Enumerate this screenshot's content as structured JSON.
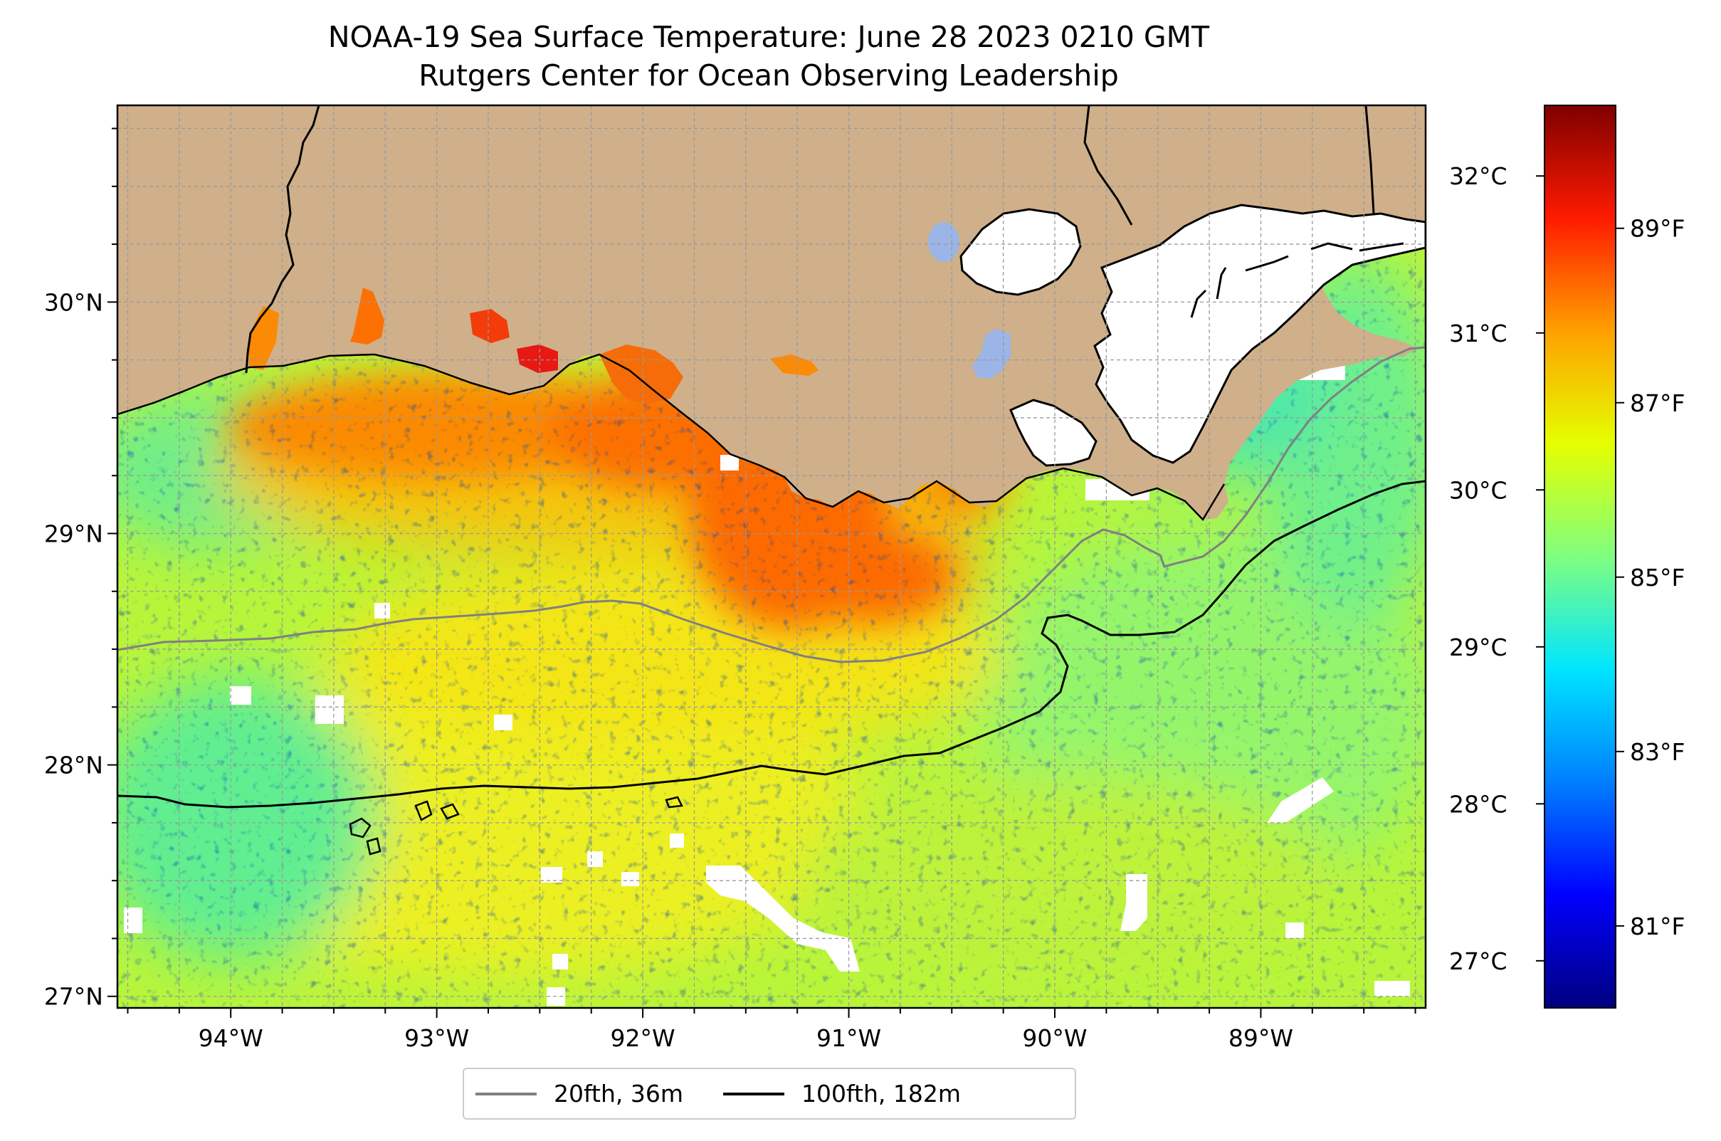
{
  "title": "NOAA-19 Sea Surface Temperature: June 28 2023 0210 GMT",
  "subtitle": "Rutgers Center for Ocean Observing Leadership",
  "colors": {
    "land": "#cfb08a",
    "cloud_mask": "#ffffff",
    "lake": "#9bb5e6",
    "isobath_20": "#808080",
    "isobath_100": "#000000",
    "colormap": [
      "#00007f",
      "#0000ff",
      "#007fff",
      "#00e5ff",
      "#7fff7f",
      "#e5ff00",
      "#ffa000",
      "#ff1a00",
      "#7f0000"
    ]
  },
  "map": {
    "lon_range": [
      -94.55,
      -88.2
    ],
    "lat_range": [
      26.95,
      30.85
    ],
    "lon_ticks": [
      "94°W",
      "93°W",
      "92°W",
      "91°W",
      "90°W",
      "89°W"
    ],
    "lat_ticks": [
      "27°N",
      "28°N",
      "29°N",
      "30°N"
    ],
    "gridlines": true
  },
  "colorbar": {
    "celsius_ticks": [
      "27°C",
      "28°C",
      "29°C",
      "30°C",
      "31°C",
      "32°C"
    ],
    "fahrenheit_ticks": [
      "81°F",
      "83°F",
      "85°F",
      "87°F",
      "89°F"
    ],
    "range_c": [
      26.7,
      32.45
    ]
  },
  "legend": [
    {
      "label": "20fth, 36m",
      "color": "#808080"
    },
    {
      "label": "100fth, 182m",
      "color": "#000000"
    }
  ]
}
